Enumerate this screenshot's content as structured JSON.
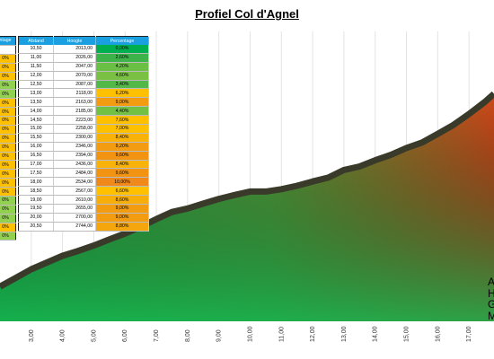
{
  "title": "Profiel Col d'Agnel",
  "chart_data": {
    "type": "area",
    "title": "Profiel Col d'Agnel",
    "x_ticks": [
      "3,00",
      "4,00",
      "5,00",
      "6,00",
      "7,00",
      "8,00",
      "9,00",
      "10,00",
      "11,00",
      "12,00",
      "13,00",
      "14,00",
      "15,00",
      "16,00",
      "17,00"
    ],
    "xlim": [
      2.0,
      17.8
    ],
    "ylim": [
      1300,
      2850
    ],
    "grid": "vertical",
    "x": [
      2.0,
      2.5,
      3.0,
      3.5,
      4.0,
      4.5,
      5.0,
      5.5,
      6.0,
      6.5,
      7.0,
      7.5,
      8.0,
      8.5,
      9.0,
      9.5,
      10.0,
      10.5,
      11.0,
      11.5,
      12.0,
      12.5,
      13.0,
      13.5,
      14.0,
      14.5,
      15.0,
      15.5,
      16.0,
      16.5,
      17.0,
      17.5,
      17.8
    ],
    "y": [
      1480,
      1525,
      1570,
      1605,
      1640,
      1665,
      1693,
      1725,
      1755,
      1790,
      1830,
      1867,
      1885,
      1910,
      1935,
      1955,
      1973,
      1973,
      1985,
      2003,
      2025,
      2045,
      2085,
      2103,
      2135,
      2163,
      2199,
      2227,
      2272,
      2318,
      2375,
      2437,
      2480
    ]
  },
  "left_table": {
    "header": "ntage",
    "rows": [
      {
        "text": "",
        "color": "#ffffff"
      },
      {
        "text": "0%",
        "color": "#ffc000"
      },
      {
        "text": "0%",
        "color": "#ffc000"
      },
      {
        "text": "0%",
        "color": "#ffc000"
      },
      {
        "text": "0%",
        "color": "#92d050"
      },
      {
        "text": "0%",
        "color": "#92d050"
      },
      {
        "text": "0%",
        "color": "#ffc000"
      },
      {
        "text": "0%",
        "color": "#ffc000"
      },
      {
        "text": "0%",
        "color": "#ffc000"
      },
      {
        "text": "0%",
        "color": "#ffc000"
      },
      {
        "text": "0%",
        "color": "#ffc000"
      },
      {
        "text": "0%",
        "color": "#ffc000"
      },
      {
        "text": "0%",
        "color": "#ffc000"
      },
      {
        "text": "0%",
        "color": "#ffc000"
      },
      {
        "text": "0%",
        "color": "#ffc000"
      },
      {
        "text": "0%",
        "color": "#ffc000"
      },
      {
        "text": "0%",
        "color": "#ffc000"
      },
      {
        "text": "0%",
        "color": "#92d050"
      },
      {
        "text": "0%",
        "color": "#92d050"
      },
      {
        "text": "0%",
        "color": "#92d050"
      },
      {
        "text": "0%",
        "color": "#ffc000"
      },
      {
        "text": "0%",
        "color": "#92d050"
      }
    ]
  },
  "table": {
    "headers": [
      "Afstand",
      "Hoogte",
      "Percentage"
    ],
    "rows": [
      {
        "afstand": "10,50",
        "hoogte": "2013,00",
        "perc": "0,00%",
        "color": "#00b050"
      },
      {
        "afstand": "11,00",
        "hoogte": "2026,00",
        "perc": "2,60%",
        "color": "#3cb44a"
      },
      {
        "afstand": "11,50",
        "hoogte": "2047,00",
        "perc": "4,20%",
        "color": "#6abf45"
      },
      {
        "afstand": "12,00",
        "hoogte": "2070,00",
        "perc": "4,60%",
        "color": "#7ac143"
      },
      {
        "afstand": "12,50",
        "hoogte": "2087,00",
        "perc": "3,40%",
        "color": "#52b848"
      },
      {
        "afstand": "13,00",
        "hoogte": "2118,00",
        "perc": "6,20%",
        "color": "#ffc000"
      },
      {
        "afstand": "13,50",
        "hoogte": "2163,00",
        "perc": "9,00%",
        "color": "#f39c12"
      },
      {
        "afstand": "14,00",
        "hoogte": "2185,00",
        "perc": "4,40%",
        "color": "#72c044"
      },
      {
        "afstand": "14,50",
        "hoogte": "2223,00",
        "perc": "7,60%",
        "color": "#ffc000"
      },
      {
        "afstand": "15,00",
        "hoogte": "2258,00",
        "perc": "7,00%",
        "color": "#ffc000"
      },
      {
        "afstand": "15,50",
        "hoogte": "2300,00",
        "perc": "8,40%",
        "color": "#f9b208"
      },
      {
        "afstand": "16,00",
        "hoogte": "2346,00",
        "perc": "9,20%",
        "color": "#f39c12"
      },
      {
        "afstand": "16,50",
        "hoogte": "2394,00",
        "perc": "9,60%",
        "color": "#f29312"
      },
      {
        "afstand": "17,00",
        "hoogte": "2436,00",
        "perc": "8,40%",
        "color": "#f9b208"
      },
      {
        "afstand": "17,50",
        "hoogte": "2484,00",
        "perc": "9,60%",
        "color": "#f29312"
      },
      {
        "afstand": "18,00",
        "hoogte": "2534,00",
        "perc": "10,00%",
        "color": "#f0891a"
      },
      {
        "afstand": "18,50",
        "hoogte": "2567,00",
        "perc": "6,60%",
        "color": "#ffc000"
      },
      {
        "afstand": "19,00",
        "hoogte": "2610,00",
        "perc": "8,60%",
        "color": "#f7ad0a"
      },
      {
        "afstand": "19,50",
        "hoogte": "2655,00",
        "perc": "9,00%",
        "color": "#f39c12"
      },
      {
        "afstand": "20,00",
        "hoogte": "2700,00",
        "perc": "9,00%",
        "color": "#f39c12"
      },
      {
        "afstand": "20,50",
        "hoogte": "2744,00",
        "perc": "8,80%",
        "color": "#f5a60d"
      }
    ]
  },
  "side_labels": [
    "A",
    "H",
    "G",
    "M"
  ]
}
